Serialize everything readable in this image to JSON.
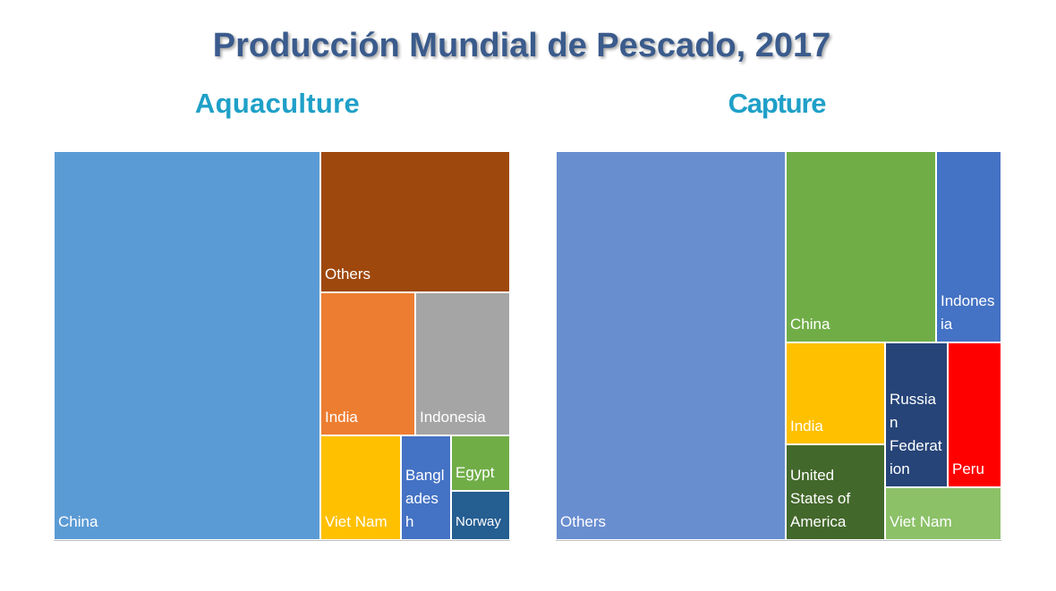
{
  "title": "Producción Mundial de Pescado, 2017",
  "chart_data": [
    {
      "type": "treemap",
      "title": "Aquaculture",
      "tiles": [
        {
          "name": "China",
          "label": "China",
          "color": "#5B9BD5"
        },
        {
          "name": "Others",
          "label": "Others",
          "color": "#9E480E"
        },
        {
          "name": "India",
          "label": "India",
          "color": "#ED7D31"
        },
        {
          "name": "Indonesia",
          "label": "Indonesia",
          "color": "#A5A5A5"
        },
        {
          "name": "Viet Nam",
          "label": "Viet Nam",
          "color": "#FFC000"
        },
        {
          "name": "Bangladesh",
          "label": "Bangl\nades\nh",
          "color": "#4472C4"
        },
        {
          "name": "Egypt",
          "label": "Egypt",
          "color": "#70AD47"
        },
        {
          "name": "Norway",
          "label": "Norway",
          "color": "#255E91"
        }
      ]
    },
    {
      "type": "treemap",
      "title": "Capture",
      "tiles": [
        {
          "name": "Others",
          "label": "Others",
          "color": "#698ED0"
        },
        {
          "name": "China",
          "label": "China",
          "color": "#70AD47"
        },
        {
          "name": "Indonesia",
          "label": "Indones\nia",
          "color": "#4472C4"
        },
        {
          "name": "India",
          "label": "India",
          "color": "#FFC000"
        },
        {
          "name": "Russian Federation",
          "label": "Russian\nFederat\nion",
          "color": "#264478"
        },
        {
          "name": "Peru",
          "label": "Peru",
          "color": "#FF0000"
        },
        {
          "name": "United States of America",
          "label": "United\nStates of\nAmerica",
          "color": "#43682B"
        },
        {
          "name": "Viet Nam",
          "label": "Viet Nam",
          "color": "#8CC168"
        }
      ]
    }
  ]
}
